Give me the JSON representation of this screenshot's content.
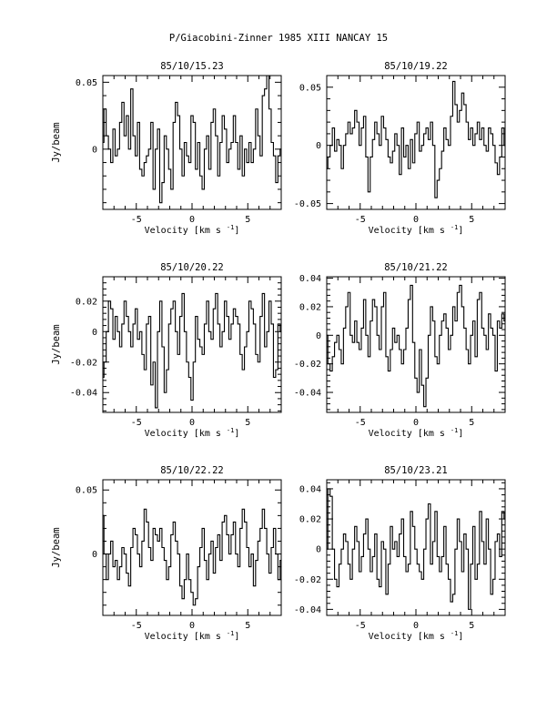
{
  "page_title": "P/Giacobini-Zinner 1985 XIII   NANCAY     15",
  "chart_data": [
    {
      "type": "line",
      "title": "85/10/15.23",
      "xlabel": "Velocity [km s",
      "xlabel_exp": "-1",
      "xlabel_close": "]",
      "ylabel": "Jy/beam",
      "xlim": [
        -8,
        8
      ],
      "ylim": [
        -0.045,
        0.055
      ],
      "xticks": [
        -5,
        0,
        5
      ],
      "xtick_labels": [
        "-5",
        "0",
        "5"
      ],
      "yticks": [
        0,
        0.05
      ],
      "ytick_labels": [
        "0",
        "0.05"
      ],
      "series": [
        {
          "x_start": -8.0,
          "x_step": 0.2,
          "values": [
            0.005,
            0.03,
            0.01,
            0.0,
            -0.01,
            0.015,
            -0.005,
            0.0,
            0.02,
            0.035,
            0.01,
            0.025,
            0.0,
            0.045,
            0.01,
            -0.005,
            0.02,
            -0.015,
            -0.02,
            -0.01,
            -0.005,
            0.0,
            0.02,
            -0.03,
            0.0,
            0.015,
            -0.04,
            -0.025,
            0.01,
            0.0,
            -0.015,
            -0.03,
            0.02,
            0.035,
            0.025,
            0.0,
            -0.02,
            0.005,
            -0.005,
            -0.01,
            0.025,
            0.02,
            -0.015,
            0.005,
            -0.02,
            -0.03,
            0.0,
            0.01,
            -0.015,
            0.02,
            0.03,
            0.01,
            -0.02,
            0.005,
            0.025,
            0.015,
            -0.01,
            0.0,
            0.005,
            0.025,
            0.005,
            -0.015,
            0.01,
            -0.02,
            0.0,
            -0.01,
            0.005,
            -0.01,
            0.0,
            0.03,
            0.01,
            -0.005,
            0.04,
            0.045,
            0.055,
            0.03,
            0.005,
            -0.005,
            -0.025,
            -0.005,
            0.0
          ]
        }
      ]
    },
    {
      "type": "line",
      "title": "85/10/19.22",
      "xlabel": "Velocity [km s",
      "xlabel_exp": "-1",
      "xlabel_close": "]",
      "ylabel": "",
      "xlim": [
        -8,
        8
      ],
      "ylim": [
        -0.055,
        0.06
      ],
      "xticks": [
        -5,
        0,
        5
      ],
      "xtick_labels": [
        "-5",
        "0",
        "5"
      ],
      "yticks": [
        -0.05,
        0,
        0.05
      ],
      "ytick_labels": [
        "-0.05",
        "0",
        "0.05"
      ],
      "series": [
        {
          "x_start": -8.0,
          "x_step": 0.2,
          "values": [
            -0.02,
            -0.01,
            0.0,
            0.015,
            -0.005,
            0.005,
            0.0,
            -0.02,
            0.0,
            0.01,
            0.02,
            0.01,
            0.015,
            0.03,
            0.02,
            0.0,
            0.015,
            0.025,
            -0.01,
            -0.04,
            -0.01,
            0.005,
            0.02,
            0.01,
            0.0,
            0.025,
            0.015,
            0.005,
            -0.01,
            -0.015,
            -0.005,
            0.01,
            0.0,
            -0.025,
            0.015,
            -0.01,
            0.0,
            -0.02,
            0.005,
            -0.015,
            0.01,
            0.02,
            -0.005,
            0.0,
            0.01,
            0.015,
            0.005,
            0.02,
            0.0,
            -0.045,
            -0.03,
            -0.02,
            -0.005,
            0.015,
            0.005,
            0.0,
            0.025,
            0.055,
            0.035,
            0.02,
            0.03,
            0.045,
            0.035,
            0.02,
            0.005,
            0.015,
            0.0,
            0.01,
            0.02,
            0.005,
            0.015,
            0.0,
            -0.005,
            0.015,
            0.01,
            0.0,
            -0.015,
            -0.025,
            -0.01,
            0.015,
            0.0
          ]
        }
      ]
    },
    {
      "type": "line",
      "title": "85/10/20.22",
      "xlabel": "Velocity [km s",
      "xlabel_exp": "-1",
      "xlabel_close": "]",
      "ylabel": "Jy/beam",
      "xlim": [
        -8,
        8
      ],
      "ylim": [
        -0.053,
        0.036
      ],
      "xticks": [
        -5,
        0,
        5
      ],
      "xtick_labels": [
        "-5",
        "0",
        "5"
      ],
      "yticks": [
        -0.04,
        -0.02,
        0,
        0.02
      ],
      "ytick_labels": [
        "-0.04",
        "-0.02",
        "0",
        "0.02"
      ],
      "series": [
        {
          "x_start": -8.0,
          "x_step": 0.2,
          "values": [
            -0.03,
            -0.02,
            0.0,
            0.02,
            0.015,
            -0.005,
            0.01,
            0.0,
            -0.01,
            0.005,
            0.02,
            0.01,
            0.0,
            -0.01,
            0.005,
            0.015,
            -0.005,
            0.0,
            -0.015,
            -0.025,
            0.005,
            0.01,
            -0.035,
            -0.02,
            -0.05,
            0.0,
            0.02,
            -0.01,
            -0.04,
            -0.025,
            0.005,
            0.015,
            0.02,
            0.0,
            -0.015,
            0.01,
            0.025,
            0.0,
            -0.02,
            -0.03,
            -0.045,
            -0.02,
            0.01,
            -0.005,
            -0.01,
            -0.015,
            0.005,
            0.02,
            0.0,
            -0.005,
            0.015,
            0.025,
            0.005,
            -0.01,
            0.0,
            0.02,
            0.01,
            -0.005,
            0.005,
            0.015,
            0.01,
            0.005,
            -0.015,
            -0.025,
            -0.01,
            0.0,
            0.02,
            0.015,
            0.005,
            -0.015,
            -0.02,
            0.01,
            0.025,
            -0.01,
            0.0,
            0.02,
            0.005,
            -0.03,
            -0.025,
            0.005,
            0.0
          ]
        }
      ]
    },
    {
      "type": "line",
      "title": "85/10/21.22",
      "xlabel": "Velocity [km s",
      "xlabel_exp": "-1",
      "xlabel_close": "]",
      "ylabel": "",
      "xlim": [
        -8,
        8
      ],
      "ylim": [
        -0.054,
        0.041
      ],
      "xticks": [
        -5,
        0,
        5
      ],
      "xtick_labels": [
        "-5",
        "0",
        "5"
      ],
      "yticks": [
        -0.04,
        -0.02,
        0,
        0.02,
        0.04
      ],
      "ytick_labels": [
        "-0.04",
        "-0.02",
        "0",
        "0.02",
        "0.04"
      ],
      "series": [
        {
          "x_start": -8.0,
          "x_step": 0.2,
          "values": [
            0.0,
            -0.02,
            -0.025,
            -0.015,
            -0.005,
            0.0,
            -0.01,
            -0.02,
            0.005,
            0.02,
            0.03,
            0.0,
            -0.005,
            0.01,
            -0.005,
            -0.01,
            0.005,
            0.025,
            0.0,
            -0.015,
            0.01,
            0.025,
            0.02,
            0.0,
            -0.01,
            0.02,
            0.03,
            -0.015,
            -0.025,
            -0.01,
            0.005,
            -0.005,
            0.0,
            -0.01,
            -0.02,
            -0.01,
            0.005,
            0.025,
            0.035,
            -0.005,
            -0.03,
            -0.04,
            -0.01,
            -0.035,
            -0.05,
            -0.03,
            0.0,
            0.02,
            0.01,
            -0.015,
            -0.02,
            0.0,
            0.01,
            0.015,
            0.005,
            -0.01,
            0.0,
            0.02,
            0.01,
            0.03,
            0.035,
            0.02,
            0.005,
            -0.01,
            -0.02,
            0.0,
            0.01,
            -0.015,
            0.025,
            0.03,
            0.005,
            0.0,
            -0.01,
            0.015,
            0.005,
            0.0,
            -0.025,
            0.01,
            0.005,
            0.015,
            0.01
          ]
        }
      ]
    },
    {
      "type": "line",
      "title": "85/10/22.22",
      "xlabel": "Velocity [km s",
      "xlabel_exp": "-1",
      "xlabel_close": "]",
      "ylabel": "Jy/beam",
      "xlim": [
        -8,
        8
      ],
      "ylim": [
        -0.048,
        0.058
      ],
      "xticks": [
        -5,
        0,
        5
      ],
      "xtick_labels": [
        "-5",
        "0",
        "5"
      ],
      "yticks": [
        0,
        0.05
      ],
      "ytick_labels": [
        "0",
        "0.05"
      ],
      "series": [
        {
          "x_start": -8.0,
          "x_step": 0.2,
          "values": [
            0.03,
            0.0,
            -0.02,
            0.0,
            0.01,
            -0.01,
            -0.005,
            -0.02,
            -0.01,
            0.005,
            0.0,
            -0.015,
            -0.025,
            0.005,
            0.02,
            0.015,
            0.0,
            -0.01,
            0.01,
            0.035,
            0.025,
            0.005,
            -0.005,
            0.02,
            0.015,
            0.01,
            0.02,
            0.005,
            -0.005,
            -0.02,
            -0.01,
            0.015,
            0.025,
            0.01,
            0.0,
            -0.025,
            -0.035,
            -0.02,
            0.0,
            -0.02,
            -0.03,
            -0.04,
            -0.035,
            -0.01,
            0.005,
            0.02,
            -0.005,
            -0.02,
            0.0,
            0.01,
            -0.015,
            0.005,
            0.015,
            -0.005,
            0.025,
            0.03,
            0.015,
            0.0,
            0.015,
            0.025,
            0.0,
            -0.01,
            0.02,
            0.035,
            0.025,
            0.005,
            -0.01,
            0.0,
            -0.025,
            -0.005,
            0.01,
            0.02,
            0.035,
            0.02,
            0.0,
            -0.015,
            0.005,
            0.02,
            0.0,
            -0.02,
            -0.005
          ]
        }
      ]
    },
    {
      "type": "line",
      "title": "85/10/23.21",
      "xlabel": "Velocity [km s",
      "xlabel_exp": "-1",
      "xlabel_close": "]",
      "ylabel": "",
      "xlim": [
        -8,
        8
      ],
      "ylim": [
        -0.044,
        0.046
      ],
      "xticks": [
        -5,
        0,
        5
      ],
      "xtick_labels": [
        "-5",
        "0",
        "5"
      ],
      "yticks": [
        -0.04,
        -0.02,
        0,
        0.02,
        0.04
      ],
      "ytick_labels": [
        "-0.04",
        "-0.02",
        "0",
        "0.02",
        "0.04"
      ],
      "series": [
        {
          "x_start": -8.0,
          "x_step": 0.2,
          "values": [
            0.0,
            0.04,
            0.035,
            0.0,
            -0.02,
            -0.025,
            -0.01,
            0.0,
            0.01,
            0.005,
            -0.01,
            -0.02,
            0.0,
            0.015,
            0.005,
            -0.015,
            -0.005,
            0.01,
            0.02,
            0.0,
            -0.015,
            -0.005,
            0.01,
            -0.02,
            -0.025,
            0.005,
            0.0,
            -0.03,
            -0.01,
            0.015,
            0.0,
            0.005,
            -0.005,
            0.01,
            0.02,
            -0.005,
            -0.015,
            -0.01,
            0.025,
            0.015,
            0.0,
            -0.01,
            -0.015,
            -0.02,
            0.0,
            0.02,
            0.03,
            -0.01,
            0.005,
            0.025,
            -0.005,
            -0.015,
            -0.005,
            0.015,
            -0.01,
            -0.02,
            -0.035,
            -0.03,
            0.0,
            0.02,
            0.005,
            -0.015,
            0.01,
            0.0,
            -0.04,
            -0.01,
            0.015,
            -0.02,
            -0.01,
            0.025,
            0.005,
            -0.01,
            0.02,
            0.0,
            -0.03,
            -0.02,
            0.005,
            0.01,
            -0.005,
            0.025,
            0.02
          ]
        }
      ]
    }
  ]
}
